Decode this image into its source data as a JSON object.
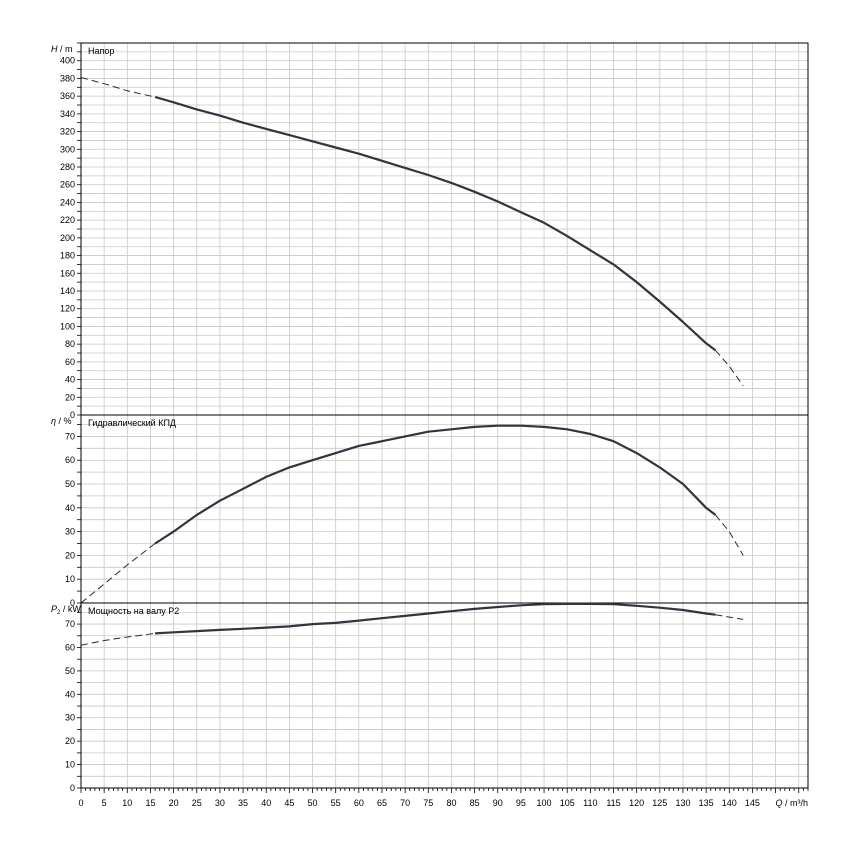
{
  "chart_data": {
    "type": "line",
    "x_axis": {
      "label_var": "Q",
      "label_unit": "m³/h",
      "range": [
        0,
        157
      ],
      "tick_step": 5,
      "tick_label_max": 145
    },
    "panels": [
      {
        "id": "head",
        "title": "Напор",
        "ylabel_var": "H",
        "ylabel_unit": "m",
        "ylim": [
          0,
          420
        ],
        "tick_labels": [
          0,
          20,
          40,
          60,
          80,
          100,
          120,
          140,
          160,
          180,
          200,
          220,
          240,
          260,
          280,
          300,
          320,
          340,
          360,
          380,
          400
        ],
        "dashed_start": {
          "x": [
            0,
            5,
            10,
            16
          ],
          "y": [
            381,
            374,
            366,
            359
          ]
        },
        "series": {
          "x": [
            16,
            20,
            25,
            30,
            35,
            40,
            45,
            50,
            55,
            60,
            65,
            70,
            75,
            80,
            85,
            90,
            95,
            100,
            105,
            110,
            115,
            120,
            125,
            130,
            135,
            137
          ],
          "y": [
            359,
            353,
            345,
            338,
            330,
            323,
            316,
            309,
            302,
            295,
            287,
            279,
            271,
            262,
            252,
            241,
            229,
            217,
            202,
            186,
            170,
            150,
            128,
            105,
            81,
            73
          ]
        },
        "dashed_end": {
          "x": [
            137,
            140,
            143
          ],
          "y": [
            73,
            55,
            33
          ]
        }
      },
      {
        "id": "efficiency",
        "title": "Гидравлический КПД",
        "ylabel_var": "η",
        "ylabel_unit": "%",
        "ylim": [
          0,
          79
        ],
        "tick_labels": [
          0,
          10,
          20,
          30,
          40,
          50,
          60,
          70
        ],
        "dashed_start": {
          "x": [
            0,
            5,
            10,
            16
          ],
          "y": [
            0,
            8,
            16,
            25
          ]
        },
        "series": {
          "x": [
            16,
            20,
            25,
            30,
            35,
            40,
            45,
            50,
            55,
            60,
            65,
            70,
            75,
            80,
            85,
            90,
            95,
            100,
            105,
            110,
            115,
            120,
            125,
            130,
            135,
            137
          ],
          "y": [
            25,
            30,
            37,
            43,
            48,
            53,
            57,
            60,
            63,
            66,
            68,
            70,
            72,
            73,
            74,
            74.5,
            74.5,
            74,
            73,
            71,
            68,
            63,
            57,
            50,
            40,
            37
          ]
        },
        "dashed_end": {
          "x": [
            137,
            140,
            143
          ],
          "y": [
            37,
            30,
            20
          ]
        }
      },
      {
        "id": "power",
        "title": "Мощность на валу P2",
        "ylabel_var": "P",
        "ylabel_sub": "2",
        "ylabel_unit": "kW",
        "ylim": [
          0,
          79
        ],
        "tick_labels": [
          0,
          10,
          20,
          30,
          40,
          50,
          60,
          70
        ],
        "dashed_start": {
          "x": [
            0,
            5,
            10,
            16
          ],
          "y": [
            61,
            63,
            64.5,
            66
          ]
        },
        "series": {
          "x": [
            16,
            20,
            25,
            30,
            35,
            40,
            45,
            50,
            55,
            60,
            65,
            70,
            75,
            80,
            85,
            90,
            95,
            100,
            105,
            110,
            115,
            120,
            125,
            130,
            135,
            137
          ],
          "y": [
            66,
            66.5,
            67,
            67.5,
            68,
            68.5,
            69,
            70,
            70.5,
            71.5,
            72.5,
            73.5,
            74.5,
            75.5,
            76.5,
            77.3,
            78,
            78.5,
            78.6,
            78.6,
            78.5,
            77.8,
            77,
            76,
            74.5,
            74
          ]
        },
        "dashed_end": {
          "x": [
            137,
            140,
            143
          ],
          "y": [
            74,
            73,
            72
          ]
        }
      }
    ]
  }
}
